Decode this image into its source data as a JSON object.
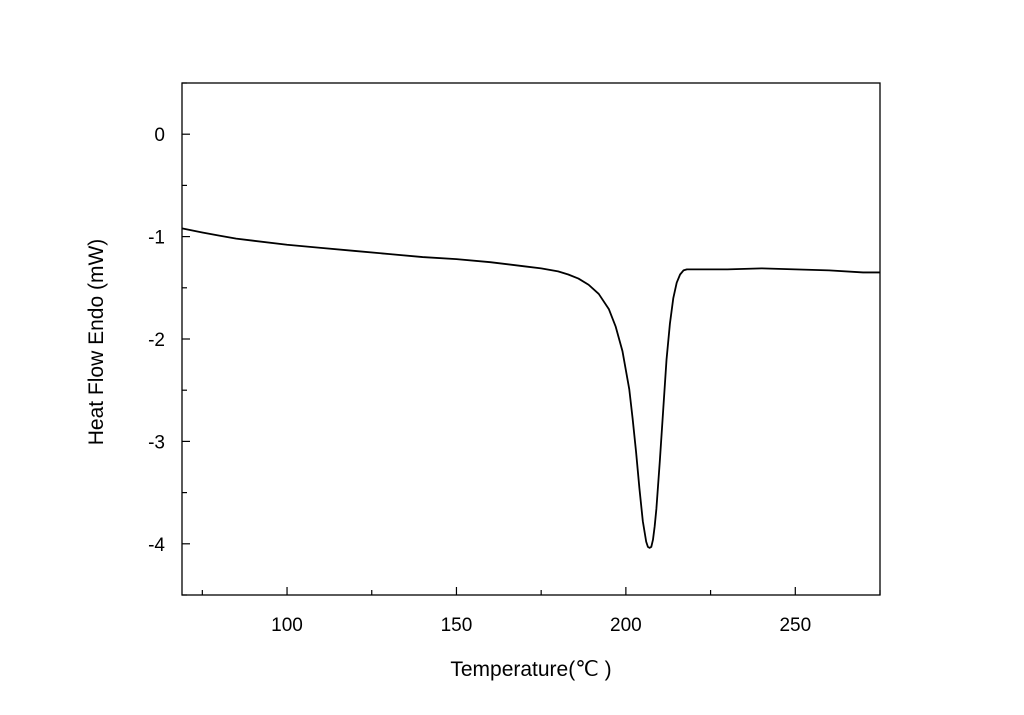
{
  "chart_data": {
    "type": "line",
    "title": "",
    "xlabel": "Temperature(℃ )",
    "ylabel": "Heat Flow Endo (mW)",
    "xlim": [
      69,
      275
    ],
    "ylim": [
      -4.5,
      0.5
    ],
    "x_ticks": [
      100,
      150,
      200,
      250
    ],
    "x_tick_labels": [
      "100",
      "150",
      "200",
      "250"
    ],
    "y_ticks": [
      0,
      -1,
      -2,
      -3,
      -4
    ],
    "y_tick_labels": [
      "0",
      "-1",
      "-2",
      "-3",
      "-4"
    ],
    "x_minor_step": 25,
    "y_minor_step": 0.5,
    "grid": false,
    "legend": "none",
    "line_color": "#000000",
    "series": [
      {
        "x": [
          69,
          75,
          80,
          85,
          90,
          100,
          110,
          120,
          130,
          140,
          150,
          160,
          170,
          175,
          180,
          183,
          186,
          189,
          192,
          195,
          197,
          199,
          201,
          202,
          203,
          204,
          205,
          206,
          206.5,
          207,
          207.5,
          208,
          208.5,
          209,
          210,
          211,
          212,
          213,
          214,
          215,
          216,
          217,
          218,
          220,
          230,
          240,
          250,
          260,
          270,
          275
        ],
        "y": [
          -0.92,
          -0.96,
          -0.99,
          -1.02,
          -1.04,
          -1.08,
          -1.11,
          -1.14,
          -1.17,
          -1.2,
          -1.22,
          -1.25,
          -1.29,
          -1.31,
          -1.34,
          -1.37,
          -1.41,
          -1.47,
          -1.56,
          -1.71,
          -1.88,
          -2.12,
          -2.49,
          -2.78,
          -3.1,
          -3.46,
          -3.78,
          -3.98,
          -4.03,
          -4.04,
          -4.03,
          -3.96,
          -3.83,
          -3.66,
          -3.2,
          -2.7,
          -2.2,
          -1.85,
          -1.6,
          -1.45,
          -1.37,
          -1.33,
          -1.32,
          -1.32,
          -1.32,
          -1.31,
          -1.32,
          -1.33,
          -1.35,
          -1.35
        ]
      }
    ]
  }
}
